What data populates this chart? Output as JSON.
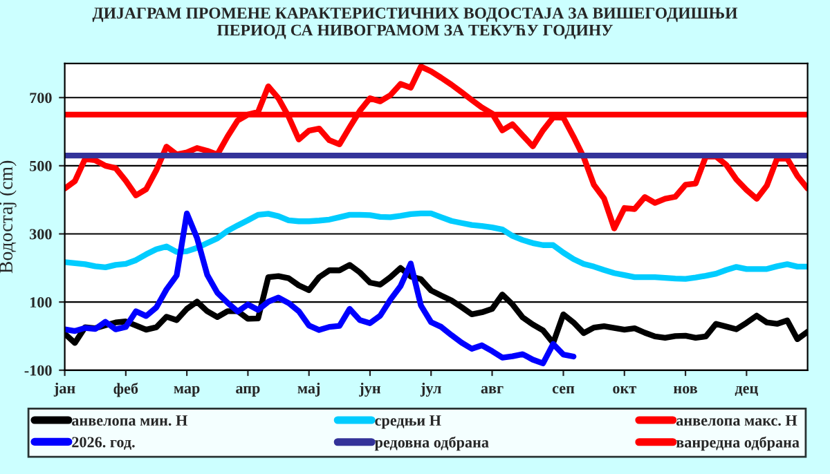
{
  "chart_data": {
    "type": "line",
    "title": "ДИЈАГРАМ ПРОМЕНЕ КАРАКТЕРИСТИЧНИХ ВОДОСТАЈА ЗА ВИШЕГОДИШЊИ\nПЕРИОД СА НИВОГРАМОМ ЗА ТЕКУЋУ ГОДИНУ",
    "ylabel": "Водостај (cm)",
    "categories": [
      "јан",
      null,
      null,
      null,
      null,
      null,
      "феб",
      null,
      null,
      null,
      null,
      null,
      "мар",
      null,
      null,
      null,
      null,
      null,
      "апр",
      null,
      null,
      null,
      null,
      null,
      "мај",
      null,
      null,
      null,
      null,
      null,
      "јун",
      null,
      null,
      null,
      null,
      null,
      "јул",
      null,
      null,
      null,
      null,
      null,
      "авг",
      null,
      null,
      null,
      null,
      null,
      null,
      "сеп",
      null,
      null,
      null,
      null,
      null,
      "окт",
      null,
      null,
      null,
      null,
      null,
      "нов",
      null,
      null,
      null,
      null,
      null,
      "дец",
      null,
      null,
      null,
      null,
      null,
      null
    ],
    "ylim": [
      -100,
      800
    ],
    "yticks": [
      -100,
      100,
      300,
      500,
      700
    ],
    "grid": "y",
    "legend": "bottom",
    "line_style": "solid",
    "marker": "none",
    "series": [
      {
        "name": "анвелопа мин. H",
        "color": "#000000",
        "values": [
          7,
          -20,
          26,
          23,
          32,
          40,
          43,
          31,
          19,
          26,
          57,
          47,
          80,
          101,
          73,
          56,
          73,
          73,
          51,
          52,
          173,
          176,
          170,
          149,
          135,
          173,
          193,
          193,
          209,
          187,
          157,
          151,
          173,
          200,
          175,
          167,
          134,
          119,
          105,
          85,
          64,
          70,
          80,
          122,
          93,
          55,
          34,
          17,
          -20,
          64,
          40,
          9,
          25,
          29,
          24,
          19,
          23,
          10,
          -1,
          -5,
          0,
          1,
          -5,
          -1,
          36,
          28,
          20,
          39,
          60,
          40,
          36,
          46,
          -9,
          13
        ]
      },
      {
        "name": "средњи H",
        "color": "#00ccff",
        "values": [
          217,
          214,
          211,
          205,
          202,
          209,
          212,
          223,
          240,
          255,
          263,
          247,
          249,
          259,
          273,
          287,
          309,
          325,
          340,
          356,
          359,
          352,
          340,
          337,
          337,
          339,
          342,
          349,
          356,
          356,
          355,
          350,
          349,
          353,
          358,
          360,
          360,
          349,
          338,
          332,
          326,
          323,
          319,
          313,
          294,
          282,
          273,
          267,
          267,
          245,
          226,
          212,
          204,
          194,
          185,
          179,
          173,
          173,
          173,
          171,
          169,
          168,
          172,
          177,
          183,
          194,
          203,
          197,
          197,
          197,
          205,
          211,
          204,
          204
        ]
      },
      {
        "name": "анвелопа макс. H",
        "color": "#ff0000",
        "values": [
          433,
          455,
          520,
          516,
          500,
          493,
          456,
          413,
          431,
          487,
          556,
          533,
          539,
          552,
          544,
          533,
          586,
          633,
          650,
          658,
          733,
          698,
          644,
          577,
          603,
          609,
          575,
          563,
          613,
          661,
          698,
          689,
          707,
          740,
          729,
          791,
          777,
          758,
          738,
          716,
          693,
          671,
          653,
          604,
          622,
          589,
          557,
          604,
          642,
          641,
          585,
          525,
          444,
          404,
          316,
          376,
          373,
          408,
          391,
          403,
          409,
          444,
          448,
          527,
          527,
          503,
          460,
          429,
          403,
          442,
          521,
          521,
          470,
          433
        ]
      },
      {
        "name": "2026. год.",
        "color": "#0000ff",
        "values": [
          20,
          15,
          24,
          21,
          42,
          20,
          27,
          73,
          59,
          84,
          137,
          178,
          360,
          288,
          180,
          127,
          98,
          72,
          93,
          77,
          101,
          113,
          97,
          73,
          31,
          18,
          27,
          30,
          80,
          47,
          38,
          60,
          107,
          147,
          213,
          90,
          41,
          27,
          3,
          -19,
          -37,
          -27,
          -44,
          -63,
          -59,
          -53,
          -69,
          -80,
          -23,
          -54,
          -60,
          null,
          null,
          null,
          null,
          null,
          null,
          null,
          null,
          null,
          null,
          null,
          null,
          null,
          null,
          null,
          null,
          null,
          null,
          null,
          null,
          null,
          null,
          null
        ]
      },
      {
        "name": "редовна одбрана",
        "color": "#333399",
        "values": [
          530,
          530,
          530,
          530,
          530,
          530,
          530,
          530,
          530,
          530,
          530,
          530,
          530,
          530,
          530,
          530,
          530,
          530,
          530,
          530,
          530,
          530,
          530,
          530,
          530,
          530,
          530,
          530,
          530,
          530,
          530,
          530,
          530,
          530,
          530,
          530,
          530,
          530,
          530,
          530,
          530,
          530,
          530,
          530,
          530,
          530,
          530,
          530,
          530,
          530,
          530,
          530,
          530,
          530,
          530,
          530,
          530,
          530,
          530,
          530,
          530,
          530,
          530,
          530,
          530,
          530,
          530,
          530,
          530,
          530,
          530,
          530,
          530,
          530
        ]
      },
      {
        "name": "ванредна одбрана",
        "color": "#ff0000",
        "values": [
          650,
          650,
          650,
          650,
          650,
          650,
          650,
          650,
          650,
          650,
          650,
          650,
          650,
          650,
          650,
          650,
          650,
          650,
          650,
          650,
          650,
          650,
          650,
          650,
          650,
          650,
          650,
          650,
          650,
          650,
          650,
          650,
          650,
          650,
          650,
          650,
          650,
          650,
          650,
          650,
          650,
          650,
          650,
          650,
          650,
          650,
          650,
          650,
          650,
          650,
          650,
          650,
          650,
          650,
          650,
          650,
          650,
          650,
          650,
          650,
          650,
          650,
          650,
          650,
          650,
          650,
          650,
          650,
          650,
          650,
          650,
          650,
          650,
          650
        ]
      }
    ]
  }
}
